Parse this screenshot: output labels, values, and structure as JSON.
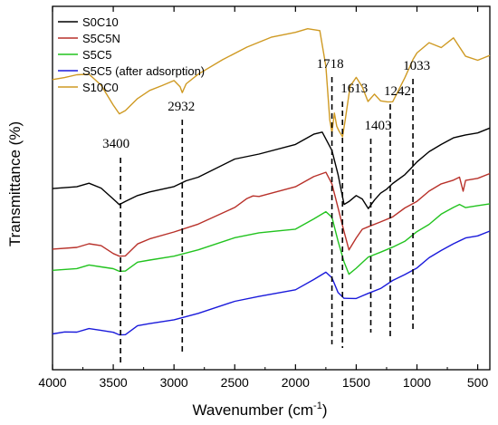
{
  "chart_data": {
    "type": "line",
    "xlabel": "Wavenumber (cm",
    "xlabel_sup": "-1",
    "xlabel_end": ")",
    "ylabel": "Transmittance (%)",
    "xlim": [
      4000,
      400
    ],
    "x_reversed": true,
    "x_ticks": [
      4000,
      3500,
      3000,
      2500,
      2000,
      1500,
      1000,
      500
    ],
    "y_ticks_shown": false,
    "grid": false,
    "legend_position": "top-left",
    "series": [
      {
        "name": "S0C10",
        "color": "#000000",
        "points": [
          [
            4000,
            70
          ],
          [
            3800,
            71
          ],
          [
            3700,
            72
          ],
          [
            3600,
            70
          ],
          [
            3500,
            66
          ],
          [
            3450,
            64
          ],
          [
            3400,
            65
          ],
          [
            3300,
            67
          ],
          [
            3200,
            68.5
          ],
          [
            3000,
            71
          ],
          [
            2900,
            73
          ],
          [
            2800,
            74
          ],
          [
            2500,
            79
          ],
          [
            2300,
            81
          ],
          [
            2000,
            85
          ],
          [
            1850,
            88
          ],
          [
            1780,
            89
          ],
          [
            1700,
            82
          ],
          [
            1650,
            74
          ],
          [
            1600,
            64
          ],
          [
            1560,
            66
          ],
          [
            1500,
            67
          ],
          [
            1450,
            66
          ],
          [
            1400,
            63
          ],
          [
            1350,
            66
          ],
          [
            1300,
            68.5
          ],
          [
            1250,
            70
          ],
          [
            1200,
            72
          ],
          [
            1100,
            75
          ],
          [
            1050,
            77
          ],
          [
            1000,
            79
          ],
          [
            900,
            82
          ],
          [
            800,
            84
          ],
          [
            700,
            86
          ],
          [
            600,
            87
          ],
          [
            500,
            88
          ],
          [
            400,
            90
          ]
        ]
      },
      {
        "name": "S5C5N",
        "color": "#b8312a",
        "points": [
          [
            4000,
            50
          ],
          [
            3800,
            51
          ],
          [
            3700,
            52
          ],
          [
            3600,
            51
          ],
          [
            3500,
            48
          ],
          [
            3450,
            47
          ],
          [
            3400,
            47
          ],
          [
            3300,
            51
          ],
          [
            3200,
            53
          ],
          [
            3000,
            56
          ],
          [
            2800,
            58.5
          ],
          [
            2500,
            63
          ],
          [
            2400,
            66
          ],
          [
            2350,
            67
          ],
          [
            2300,
            67
          ],
          [
            2000,
            71
          ],
          [
            1850,
            74
          ],
          [
            1750,
            75
          ],
          [
            1700,
            71
          ],
          [
            1650,
            63
          ],
          [
            1600,
            55
          ],
          [
            1560,
            50
          ],
          [
            1500,
            53
          ],
          [
            1450,
            56
          ],
          [
            1400,
            57
          ],
          [
            1300,
            59
          ],
          [
            1200,
            61
          ],
          [
            1100,
            64
          ],
          [
            1000,
            66
          ],
          [
            900,
            69
          ],
          [
            800,
            71
          ],
          [
            700,
            72
          ],
          [
            650,
            73
          ],
          [
            620,
            69
          ],
          [
            600,
            72
          ],
          [
            500,
            73
          ],
          [
            400,
            75
          ]
        ]
      },
      {
        "name": "S5C5",
        "color": "#22c31f",
        "points": [
          [
            4000,
            43
          ],
          [
            3800,
            44
          ],
          [
            3700,
            45
          ],
          [
            3600,
            44
          ],
          [
            3500,
            43
          ],
          [
            3450,
            42
          ],
          [
            3400,
            42
          ],
          [
            3300,
            45
          ],
          [
            3200,
            46
          ],
          [
            3000,
            48
          ],
          [
            2800,
            50
          ],
          [
            2500,
            53
          ],
          [
            2300,
            55
          ],
          [
            2000,
            57
          ],
          [
            1850,
            60
          ],
          [
            1750,
            62
          ],
          [
            1700,
            60
          ],
          [
            1650,
            52
          ],
          [
            1600,
            45
          ],
          [
            1560,
            42
          ],
          [
            1500,
            43
          ],
          [
            1450,
            45
          ],
          [
            1400,
            47
          ],
          [
            1300,
            49
          ],
          [
            1200,
            51
          ],
          [
            1100,
            53
          ],
          [
            1000,
            56
          ],
          [
            900,
            58
          ],
          [
            800,
            61
          ],
          [
            700,
            63
          ],
          [
            650,
            64
          ],
          [
            600,
            63
          ],
          [
            500,
            64
          ],
          [
            400,
            65
          ]
        ]
      },
      {
        "name": "S5C5 (after adsorption)",
        "color": "#1a1adb",
        "points": [
          [
            4000,
            22
          ],
          [
            3900,
            23
          ],
          [
            3800,
            23
          ],
          [
            3700,
            24
          ],
          [
            3600,
            23
          ],
          [
            3500,
            22
          ],
          [
            3450,
            21
          ],
          [
            3400,
            21
          ],
          [
            3300,
            24
          ],
          [
            3200,
            25
          ],
          [
            3000,
            27
          ],
          [
            2800,
            29
          ],
          [
            2500,
            32
          ],
          [
            2300,
            34
          ],
          [
            2000,
            37
          ],
          [
            1850,
            40
          ],
          [
            1750,
            42
          ],
          [
            1700,
            40
          ],
          [
            1650,
            35
          ],
          [
            1600,
            33
          ],
          [
            1560,
            34
          ],
          [
            1500,
            33
          ],
          [
            1450,
            34
          ],
          [
            1400,
            35
          ],
          [
            1300,
            37
          ],
          [
            1200,
            40
          ],
          [
            1100,
            42
          ],
          [
            1000,
            44
          ],
          [
            900,
            47
          ],
          [
            800,
            49
          ],
          [
            700,
            51
          ],
          [
            600,
            53
          ],
          [
            500,
            54
          ],
          [
            400,
            56
          ]
        ]
      },
      {
        "name": "S10C0",
        "color": "#cf9a23",
        "points": [
          [
            4000,
            106
          ],
          [
            3900,
            107
          ],
          [
            3800,
            108
          ],
          [
            3700,
            108
          ],
          [
            3600,
            104
          ],
          [
            3500,
            97
          ],
          [
            3450,
            94
          ],
          [
            3400,
            95
          ],
          [
            3300,
            99
          ],
          [
            3200,
            102
          ],
          [
            3100,
            104
          ],
          [
            3000,
            106
          ],
          [
            2950,
            104
          ],
          [
            2932,
            102
          ],
          [
            2900,
            105
          ],
          [
            2800,
            108
          ],
          [
            2600,
            112
          ],
          [
            2400,
            116
          ],
          [
            2200,
            120
          ],
          [
            2000,
            122
          ],
          [
            1900,
            123
          ],
          [
            1800,
            122
          ],
          [
            1750,
            110
          ],
          [
            1718,
            92
          ],
          [
            1700,
            88
          ],
          [
            1680,
            95
          ],
          [
            1660,
            91
          ],
          [
            1640,
            89
          ],
          [
            1613,
            87
          ],
          [
            1590,
            93
          ],
          [
            1550,
            103
          ],
          [
            1500,
            106
          ],
          [
            1450,
            103
          ],
          [
            1403,
            99
          ],
          [
            1350,
            101
          ],
          [
            1300,
            99
          ],
          [
            1242,
            98
          ],
          [
            1200,
            99
          ],
          [
            1100,
            107
          ],
          [
            1033,
            113
          ],
          [
            1000,
            115
          ],
          [
            900,
            118
          ],
          [
            800,
            116
          ],
          [
            700,
            119
          ],
          [
            600,
            113
          ],
          [
            500,
            112
          ],
          [
            400,
            114
          ]
        ]
      }
    ],
    "peak_markers": [
      {
        "label": "3400",
        "x": 3440
      },
      {
        "label": "2932",
        "x": 2932
      },
      {
        "label": "1718",
        "x": 1700
      },
      {
        "label": "1613",
        "x": 1613
      },
      {
        "label": "1403",
        "x": 1380
      },
      {
        "label": "1242",
        "x": 1220
      },
      {
        "label": "1033",
        "x": 1033
      }
    ]
  }
}
